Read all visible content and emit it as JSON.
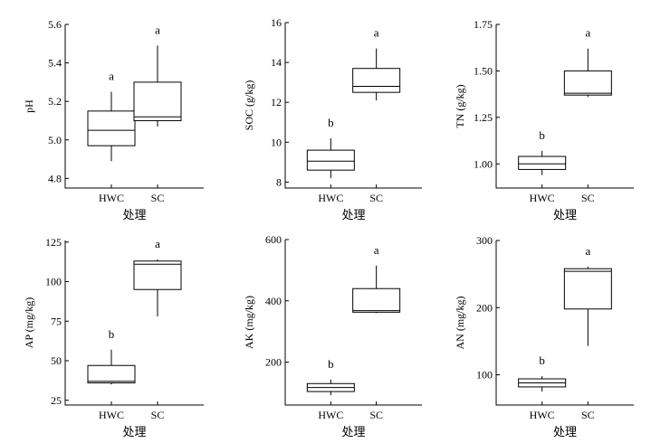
{
  "chart_data": [
    {
      "type": "box",
      "ylabel": "pH",
      "xlabel": "处理",
      "ylim": [
        4.75,
        5.6
      ],
      "yticks": [
        4.8,
        5.0,
        5.2,
        5.4,
        5.6
      ],
      "ytick_labels": [
        "4.8",
        "5.0",
        "5.2",
        "5.4",
        "5.6"
      ],
      "categories": [
        "HWC",
        "SC"
      ],
      "boxes": [
        {
          "whisker_low": 4.89,
          "q1": 4.97,
          "median": 5.05,
          "q3": 5.15,
          "whisker_high": 5.25,
          "letter": "a"
        },
        {
          "whisker_low": 5.07,
          "q1": 5.1,
          "median": 5.12,
          "q3": 5.3,
          "whisker_high": 5.49,
          "letter": "a"
        }
      ]
    },
    {
      "type": "box",
      "ylabel": "SOC (g/kg)",
      "xlabel": "处理",
      "ylim": [
        7.7,
        16
      ],
      "yticks": [
        8,
        10,
        12,
        14,
        16
      ],
      "ytick_labels": [
        "8",
        "10",
        "12",
        "14",
        "16"
      ],
      "categories": [
        "HWC",
        "SC"
      ],
      "boxes": [
        {
          "whisker_low": 8.2,
          "q1": 8.6,
          "median": 9.05,
          "q3": 9.6,
          "whisker_high": 10.2,
          "letter": "b"
        },
        {
          "whisker_low": 12.1,
          "q1": 12.5,
          "median": 12.8,
          "q3": 13.7,
          "whisker_high": 14.7,
          "letter": "a"
        }
      ]
    },
    {
      "type": "box",
      "ylabel": "TN (g/kg)",
      "xlabel": "处理",
      "ylim": [
        0.87,
        1.75
      ],
      "yticks": [
        1.0,
        1.25,
        1.5,
        1.75
      ],
      "ytick_labels": [
        "1.00",
        "1.25",
        "1.50",
        "1.75"
      ],
      "categories": [
        "HWC",
        "SC"
      ],
      "boxes": [
        {
          "whisker_low": 0.94,
          "q1": 0.97,
          "median": 1.0,
          "q3": 1.04,
          "whisker_high": 1.07,
          "letter": "b"
        },
        {
          "whisker_low": 1.36,
          "q1": 1.37,
          "median": 1.38,
          "q3": 1.5,
          "whisker_high": 1.62,
          "letter": "a"
        }
      ]
    },
    {
      "type": "box",
      "ylabel": "AP (mg/kg)",
      "xlabel": "处理",
      "ylim": [
        22,
        126
      ],
      "yticks": [
        25,
        50,
        75,
        100,
        125
      ],
      "ytick_labels": [
        "25",
        "50",
        "75",
        "100",
        "125"
      ],
      "categories": [
        "HWC",
        "SC"
      ],
      "boxes": [
        {
          "whisker_low": 35,
          "q1": 36,
          "median": 37,
          "q3": 47,
          "whisker_high": 57,
          "letter": "b"
        },
        {
          "whisker_low": 78,
          "q1": 95,
          "median": 111,
          "q3": 113,
          "whisker_high": 114,
          "letter": "a"
        }
      ]
    },
    {
      "type": "box",
      "ylabel": "AK (mg/kg)",
      "xlabel": "处理",
      "ylim": [
        60,
        600
      ],
      "yticks": [
        200,
        400,
        600
      ],
      "ytick_labels": [
        "200",
        "400",
        "600"
      ],
      "categories": [
        "HWC",
        "SC"
      ],
      "boxes": [
        {
          "whisker_low": 92,
          "q1": 104,
          "median": 117,
          "q3": 130,
          "whisker_high": 143,
          "letter": "b"
        },
        {
          "whisker_low": 360,
          "q1": 363,
          "median": 368,
          "q3": 440,
          "whisker_high": 515,
          "letter": "a"
        }
      ]
    },
    {
      "type": "box",
      "ylabel": "AN (mg/kg)",
      "xlabel": "处理",
      "ylim": [
        55,
        300
      ],
      "yticks": [
        100,
        200,
        300
      ],
      "ytick_labels": [
        "100",
        "200",
        "300"
      ],
      "categories": [
        "HWC",
        "SC"
      ],
      "boxes": [
        {
          "whisker_low": 75,
          "q1": 82,
          "median": 88,
          "q3": 94,
          "whisker_high": 98,
          "letter": "b"
        },
        {
          "whisker_low": 143,
          "q1": 198,
          "median": 254,
          "q3": 258,
          "whisker_high": 261,
          "letter": "a"
        }
      ]
    }
  ]
}
